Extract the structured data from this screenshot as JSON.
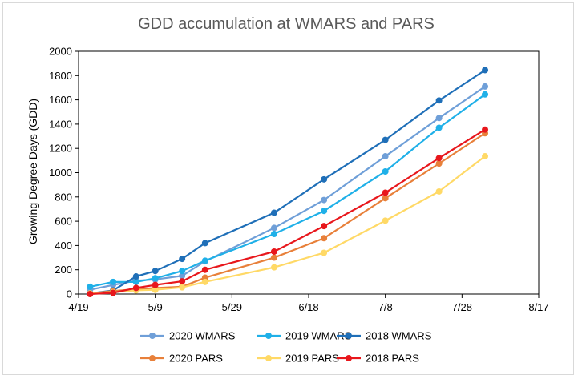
{
  "chart_data": {
    "type": "line",
    "title": "GDD accumulation at WMARS and PARS",
    "xlabel": "",
    "ylabel": "Growing Degree Days (GDD)",
    "x_tick_labels": [
      "4/19",
      "5/9",
      "5/29",
      "6/18",
      "7/8",
      "7/28",
      "8/17"
    ],
    "x_tick_days": [
      0,
      20,
      40,
      60,
      80,
      100,
      120
    ],
    "xlim_days": [
      0,
      120
    ],
    "ylim": [
      0,
      2000
    ],
    "y_ticks": [
      0,
      200,
      400,
      600,
      800,
      1000,
      1200,
      1400,
      1600,
      1800,
      2000
    ],
    "grid": false,
    "legend_position": "bottom",
    "series": [
      {
        "name": "2020 WMARS",
        "color": "#6f9fd8",
        "x_days": [
          3,
          9,
          15,
          20,
          27,
          33,
          51,
          64,
          80,
          94,
          106
        ],
        "values": [
          35,
          75,
          110,
          120,
          150,
          270,
          545,
          775,
          1135,
          1450,
          1710
        ]
      },
      {
        "name": "2019 WMARS",
        "color": "#1fb0e8",
        "x_days": [
          3,
          9,
          15,
          20,
          27,
          33,
          51,
          64,
          80,
          94,
          106
        ],
        "values": [
          60,
          100,
          100,
          130,
          190,
          275,
          495,
          685,
          1010,
          1370,
          1645
        ]
      },
      {
        "name": "2018 WMARS",
        "color": "#1f6fb8",
        "x_days": [
          3,
          9,
          15,
          20,
          27,
          33,
          51,
          64,
          80,
          94,
          106
        ],
        "values": [
          5,
          30,
          145,
          190,
          290,
          420,
          670,
          945,
          1270,
          1595,
          1845
        ]
      },
      {
        "name": "2020 PARS",
        "color": "#e8803a",
        "x_days": [
          3,
          9,
          15,
          20,
          27,
          33,
          51,
          64,
          80,
          94,
          106
        ],
        "values": [
          5,
          25,
          40,
          50,
          60,
          135,
          300,
          460,
          790,
          1075,
          1325
        ]
      },
      {
        "name": "2019 PARS",
        "color": "#ffd966",
        "x_days": [
          3,
          9,
          15,
          20,
          27,
          33,
          51,
          64,
          80,
          94,
          106
        ],
        "values": [
          5,
          15,
          30,
          35,
          55,
          100,
          220,
          340,
          605,
          845,
          1135
        ]
      },
      {
        "name": "2018 PARS",
        "color": "#e8171c",
        "x_days": [
          3,
          9,
          15,
          20,
          27,
          33,
          51,
          64,
          80,
          94,
          106
        ],
        "values": [
          0,
          10,
          50,
          75,
          105,
          200,
          350,
          560,
          835,
          1120,
          1355
        ]
      }
    ]
  }
}
